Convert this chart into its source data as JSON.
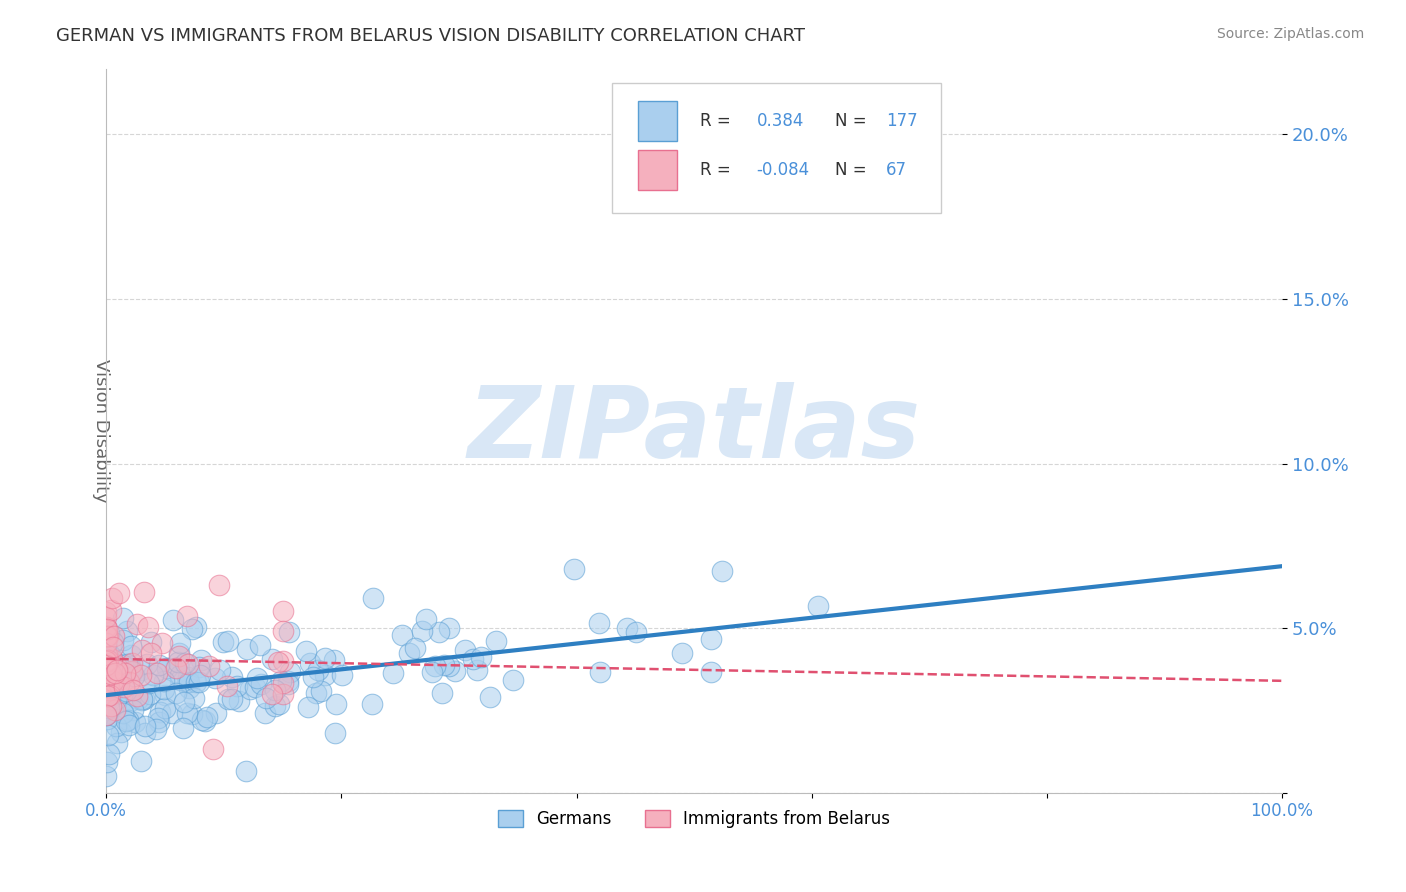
{
  "title": "GERMAN VS IMMIGRANTS FROM BELARUS VISION DISABILITY CORRELATION CHART",
  "source": "Source: ZipAtlas.com",
  "xlabel": "",
  "ylabel": "Vision Disability",
  "xlim": [
    0.0,
    1.0
  ],
  "ylim": [
    0.0,
    0.22
  ],
  "xticks": [
    0.0,
    0.2,
    0.4,
    0.6,
    0.8,
    1.0
  ],
  "xtick_labels": [
    "0.0%",
    "",
    "",
    "",
    "",
    "100.0%"
  ],
  "yticks": [
    0.0,
    0.05,
    0.1,
    0.15,
    0.2
  ],
  "ytick_labels": [
    "",
    "5.0%",
    "10.0%",
    "15.0%",
    "20.0%"
  ],
  "german_R": 0.384,
  "german_N": 177,
  "belarus_R": -0.084,
  "belarus_N": 67,
  "german_color": "#aacfee",
  "german_edge_color": "#5a9fd4",
  "german_line_color": "#2e7fc2",
  "belarus_color": "#f5b0be",
  "belarus_edge_color": "#e87090",
  "belarus_line_color": "#e05070",
  "background_color": "#ffffff",
  "grid_color": "#cccccc",
  "watermark_text": "ZIPatlas",
  "watermark_color": "#d5e5f5",
  "title_color": "#333333",
  "source_color": "#888888",
  "axis_label_color": "#666666",
  "tick_color": "#4a90d9",
  "legend_entry_r_color": "#333333",
  "legend_entry_n_color": "#4a90d9"
}
